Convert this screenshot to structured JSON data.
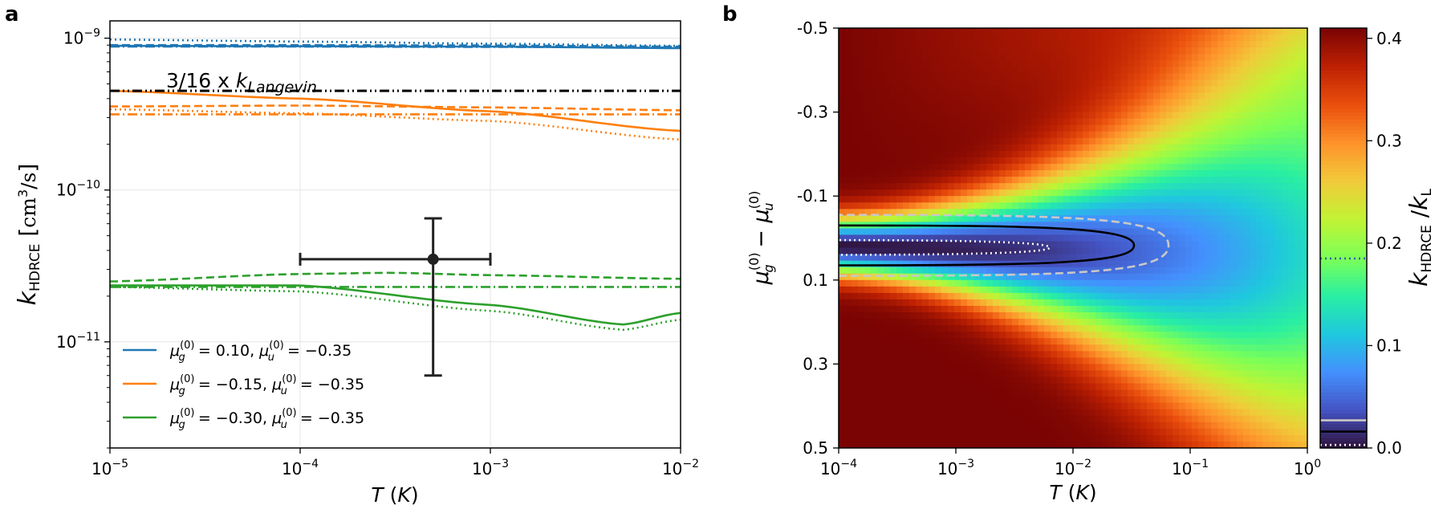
{
  "panel_labels": [
    "a",
    "b"
  ],
  "chart_data": [
    {
      "type": "line",
      "panel": "a",
      "yscale": "log",
      "xscale": "log",
      "xlim": [
        1e-05,
        0.01
      ],
      "ylim": [
        2e-12,
        1.3e-09
      ],
      "grid": true,
      "xlabel": "T (K)",
      "ylabel": "k_HDRCE [cm^3/s]",
      "x_ticks": [
        "10^-5",
        "10^-4",
        "10^-3",
        "10^-2"
      ],
      "y_ticks": [
        "10^-11",
        "10^-10",
        "10^-9"
      ],
      "legend_position": "lower-left",
      "annotation": "3/16 x k_Langevin",
      "annotation_value": 4.5e-10,
      "series": [
        {
          "name": "μg(0) = 0.10, μu(0) = −0.35",
          "color": "#1f77b4",
          "solid": {
            "x": [
              1e-05,
              0.0001,
              0.001,
              0.01
            ],
            "y": [
              8.9e-10,
              8.85e-10,
              8.8e-10,
              8.6e-10
            ]
          },
          "dashed": {
            "x": [
              1e-05,
              0.0001,
              0.001,
              0.01
            ],
            "y": [
              9e-10,
              9e-10,
              8.95e-10,
              8.8e-10
            ]
          },
          "dotted": {
            "x": [
              1e-05,
              0.0001,
              0.001,
              0.01
            ],
            "y": [
              9.8e-10,
              9.5e-10,
              9.2e-10,
              8.9e-10
            ]
          },
          "dashdot": {
            "x": [
              1e-05,
              0.0001,
              0.001,
              0.01
            ],
            "y": [
              8.8e-10,
              8.8e-10,
              8.75e-10,
              8.7e-10
            ]
          }
        },
        {
          "name": "μg(0) = −0.15, μu(0) = −0.35",
          "color": "#ff7f0e",
          "solid": {
            "x": [
              1e-05,
              0.0001,
              0.001,
              0.01
            ],
            "y": [
              4.5e-10,
              4e-10,
              3.3e-10,
              2.45e-10
            ]
          },
          "dashed": {
            "x": [
              1e-05,
              0.0001,
              0.001,
              0.01
            ],
            "y": [
              3.55e-10,
              3.6e-10,
              3.5e-10,
              3.35e-10
            ]
          },
          "dotted": {
            "x": [
              1e-05,
              0.0001,
              0.001,
              0.01
            ],
            "y": [
              3.4e-10,
              3.2e-10,
              2.85e-10,
              2.15e-10
            ]
          },
          "dashdot": {
            "x": [
              1e-05,
              0.0001,
              0.001,
              0.01
            ],
            "y": [
              3.15e-10,
              3.15e-10,
              3.15e-10,
              3.15e-10
            ]
          }
        },
        {
          "name": "μg(0) = −0.30, μu(0) = −0.35",
          "color": "#2ca02c",
          "solid": {
            "x": [
              1e-05,
              0.0001,
              0.001,
              0.005,
              0.01
            ],
            "y": [
              2.35e-11,
              2.35e-11,
              1.75e-11,
              1.3e-11,
              1.55e-11
            ]
          },
          "dashed": {
            "x": [
              1e-05,
              0.0001,
              0.0003,
              0.001,
              0.01
            ],
            "y": [
              2.5e-11,
              2.8e-11,
              2.85e-11,
              2.75e-11,
              2.6e-11
            ]
          },
          "dotted": {
            "x": [
              1e-05,
              0.0001,
              0.001,
              0.005,
              0.01
            ],
            "y": [
              2.3e-11,
              2.15e-11,
              1.6e-11,
              1.2e-11,
              1.4e-11
            ]
          },
          "dashdot": {
            "x": [
              1e-05,
              0.0001,
              0.001,
              0.01
            ],
            "y": [
              2.3e-11,
              2.3e-11,
              2.3e-11,
              2.3e-11
            ]
          }
        }
      ],
      "reference_line": {
        "value": 4.5e-10,
        "color": "#000000",
        "style": "dashdotdot"
      },
      "data_point": {
        "x": 0.0005,
        "y": 3.5e-11,
        "x_err": [
          0.0001,
          0.001
        ],
        "y_err": [
          6e-12,
          6.5e-11
        ]
      }
    },
    {
      "type": "heatmap",
      "panel": "b",
      "xscale": "log",
      "xlim": [
        0.0001,
        1
      ],
      "ylim": [
        -0.5,
        0.5
      ],
      "y_inverted": true,
      "xlabel": "T (K)",
      "ylabel": "μg(0) − μu(0)",
      "x_ticks": [
        "10^-4",
        "10^-3",
        "10^-2",
        "10^-1",
        "10^0"
      ],
      "y_ticks": [
        "-0.5",
        "-0.3",
        "-0.1",
        "0.1",
        "0.3",
        "0.5"
      ],
      "colorbar": {
        "label": "k_HDRCE / k_L",
        "range": [
          0,
          0.41
        ],
        "ticks": [
          "0.0",
          "0.1",
          "0.2",
          "0.3",
          "0.4"
        ],
        "lines": [
          {
            "value": 0.185,
            "color": "#3a58b0",
            "style": "dotted"
          },
          {
            "value": 0.027,
            "color": "#c8c8c8",
            "style": "dashed"
          },
          {
            "value": 0.016,
            "color": "#000000",
            "style": "solid"
          },
          {
            "value": 0.003,
            "color": "#ffffff",
            "style": "dotted"
          }
        ]
      },
      "colormap": [
        "#30123b",
        "#4454c4",
        "#4490fe",
        "#1fc8de",
        "#29efa2",
        "#7dff56",
        "#c1f334",
        "#f1ca3a",
        "#fe922a",
        "#ea4f0d",
        "#be2102",
        "#7a0403"
      ],
      "contours": [
        {
          "style": "dotted",
          "color": "#ffffff"
        },
        {
          "style": "solid",
          "color": "#000000"
        },
        {
          "style": "dashed",
          "color": "#c8c8c8"
        }
      ]
    }
  ]
}
